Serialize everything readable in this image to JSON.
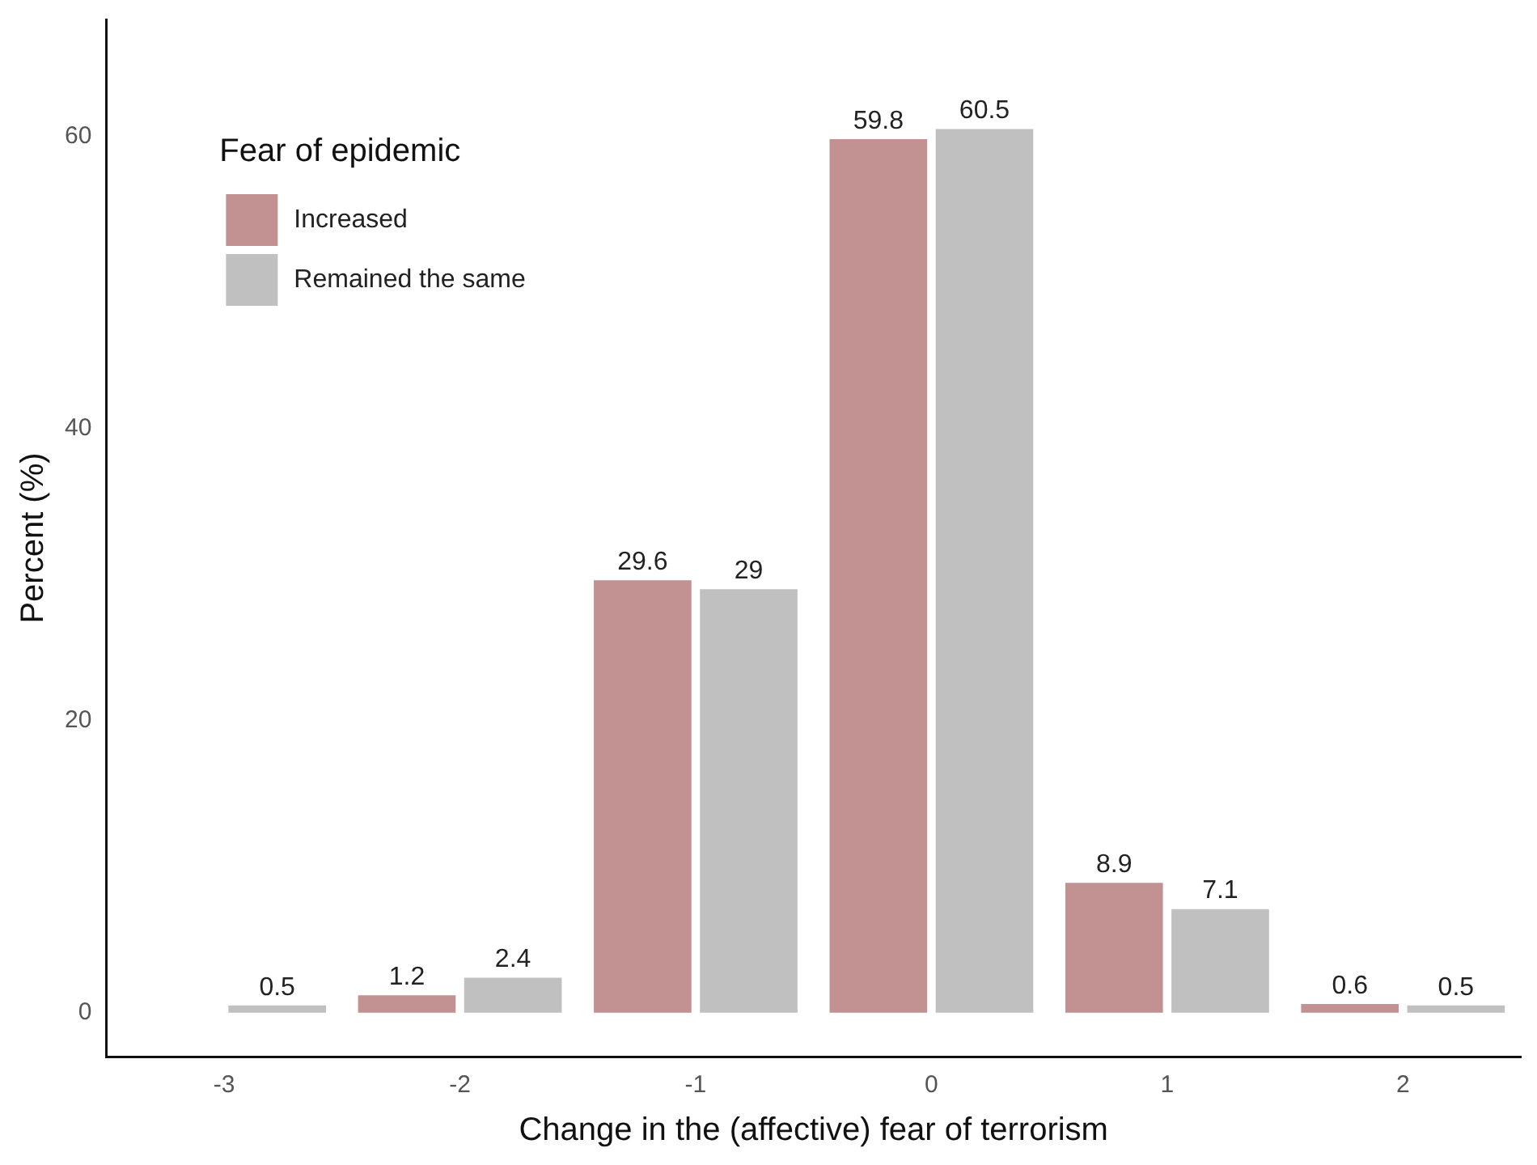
{
  "chart_data": {
    "type": "bar",
    "xlabel": "Change in the (affective) fear of terrorism",
    "ylabel": "Percent (%)",
    "legend_title": "Fear of epidemic",
    "categories": [
      "-3",
      "-2",
      "-1",
      "0",
      "1",
      "2"
    ],
    "series": [
      {
        "name": "Increased",
        "color": "#c29191",
        "values": [
          null,
          1.2,
          29.6,
          59.8,
          8.9,
          0.6
        ]
      },
      {
        "name": "Remained the same",
        "color": "#c0c0c0",
        "values": [
          0.5,
          2.4,
          29,
          60.5,
          7.1,
          0.5
        ]
      }
    ],
    "ylim": [
      -3,
      68
    ],
    "yticks": [
      0,
      20,
      40,
      60
    ],
    "grid": false,
    "legend": "top left",
    "data_labels": true
  }
}
